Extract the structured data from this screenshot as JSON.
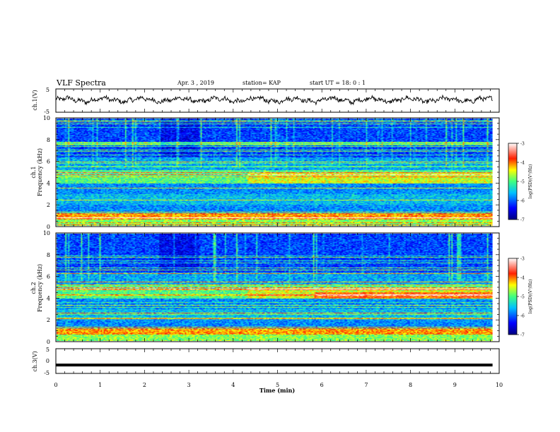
{
  "header": {
    "title": "VLF Spectra",
    "date": "Apr. 3  , 2019",
    "station": "station= KAP",
    "start": "start  UT =   18: 0  : 1"
  },
  "chart_data": [
    {
      "type": "line",
      "panel": "ch1-waveform",
      "ylabel": "ch.1(V)",
      "ylim": [
        -5,
        5
      ],
      "yticks": [
        "5",
        "-5"
      ],
      "xlim": [
        0,
        10
      ],
      "x_end_min": 9.85,
      "trace_color": "#000000",
      "trace_mean": 0.3,
      "trace_amplitude": 1.3
    },
    {
      "type": "heatmap",
      "panel": "ch1-spectrogram",
      "ylabel": "ch.1\nFrequency (kHz)",
      "ylabel_line1": "ch.1",
      "ylabel_line2": "Frequency (kHz)",
      "ylim": [
        0,
        10
      ],
      "yticks": [
        "0",
        "2",
        "4",
        "6",
        "8",
        "10"
      ],
      "xlim": [
        0,
        10
      ],
      "x_end_min": 9.85,
      "colorbar": {
        "label": "log(PSD)(V²/Hz)",
        "range": [
          -7,
          -3
        ],
        "ticks": [
          "-3",
          "-4",
          "-5",
          "-6",
          "-7"
        ],
        "colormap": [
          "#00007f",
          "#0000ff",
          "#0080ff",
          "#00ffff",
          "#80ff80",
          "#ffff00",
          "#ff8000",
          "#ff0000",
          "#ffffff"
        ]
      }
    },
    {
      "type": "heatmap",
      "panel": "ch2-spectrogram",
      "ylabel": "ch.2\nFrequency (kHz)",
      "ylabel_line1": "ch.2",
      "ylabel_line2": "Frequency (kHz)",
      "ylim": [
        0,
        10
      ],
      "yticks": [
        "0",
        "2",
        "4",
        "6",
        "8",
        "10"
      ],
      "xlim": [
        0,
        10
      ],
      "x_end_min": 9.85,
      "colorbar": {
        "label": "log(PSD)(V²/Hz)",
        "range": [
          -7,
          -3
        ],
        "ticks": [
          "-3",
          "-4",
          "-5",
          "-6",
          "-7"
        ]
      }
    },
    {
      "type": "line",
      "panel": "ch3-waveform",
      "ylabel": "ch.3(V)",
      "ylim": [
        -5,
        5
      ],
      "yticks": [
        "5",
        "0",
        "-5"
      ],
      "xlim": [
        0,
        10
      ],
      "xticks": [
        "0",
        "1",
        "2",
        "3",
        "4",
        "5",
        "6",
        "7",
        "8",
        "9",
        "10"
      ],
      "xlabel": "Time  (min)",
      "x_end_min": 9.85,
      "trace_value": -1.6,
      "trace_color": "#000000"
    }
  ]
}
